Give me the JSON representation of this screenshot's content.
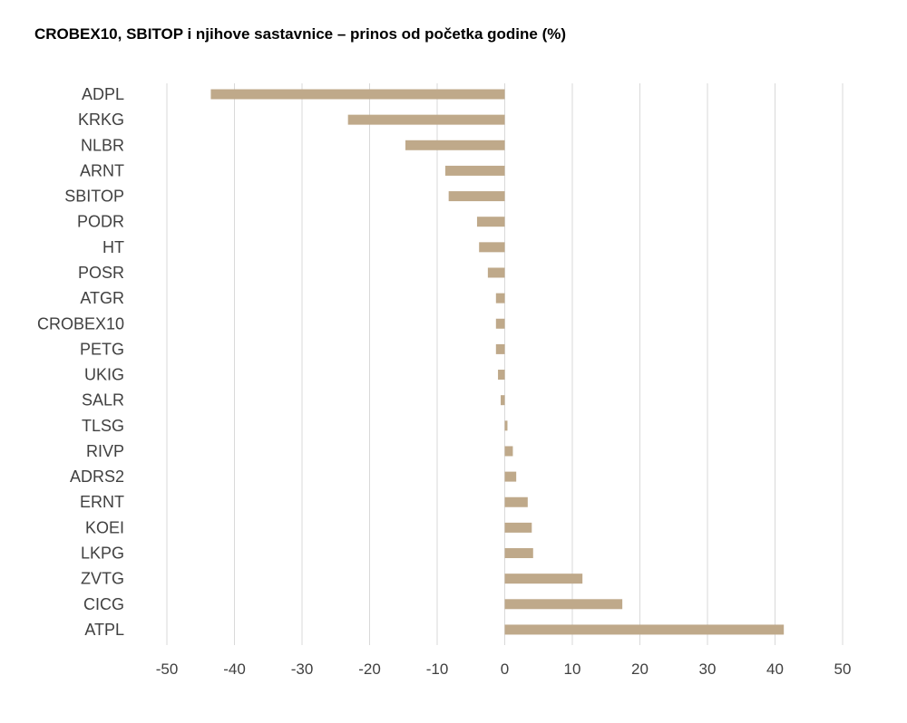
{
  "chart_data": {
    "type": "bar",
    "orientation": "horizontal",
    "title": "CROBEX10, SBITOP i njihove sastavnice – prinos od početka godine (%)",
    "xlabel": "",
    "ylabel": "",
    "xlim": [
      -50,
      50
    ],
    "x_ticks": [
      "-50",
      "-40",
      "-30",
      "-20",
      "-10",
      "0",
      "10",
      "20",
      "30",
      "40",
      "50"
    ],
    "grid": "vertical",
    "legend": "none",
    "bar_color": "#BFA98A",
    "categories": [
      "ADPL",
      "KRKG",
      "NLBR",
      "ARNT",
      "SBITOP",
      "PODR",
      "HT",
      "POSR",
      "ATGR",
      "CROBEX10",
      "PETG",
      "UKIG",
      "SALR",
      "TLSG",
      "RIVP",
      "ADRS2",
      "ERNT",
      "KOEI",
      "LKPG",
      "ZVTG",
      "CICG",
      "ATPL"
    ],
    "values": [
      -43.5,
      -23.2,
      -14.7,
      -8.8,
      -8.3,
      -4.1,
      -3.8,
      -2.5,
      -1.3,
      -1.3,
      -1.3,
      -1.0,
      -0.6,
      0.4,
      1.2,
      1.7,
      3.4,
      4.0,
      4.2,
      11.5,
      17.4,
      41.3
    ]
  }
}
